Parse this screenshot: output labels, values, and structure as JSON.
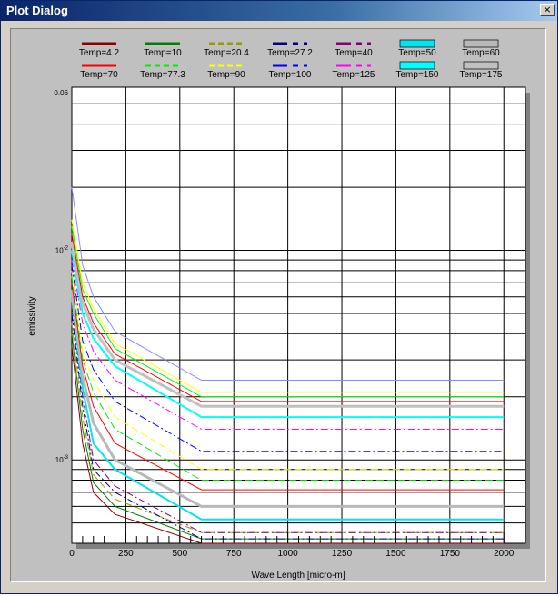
{
  "window": {
    "title": "Plot Dialog",
    "close_glyph": "×",
    "close_icon": "close-icon"
  },
  "chart_data": {
    "type": "line",
    "title": "",
    "xlabel": "Wave Length [micro-m]",
    "ylabel": "emissivity",
    "yscale": "log",
    "xlim": [
      0,
      2100
    ],
    "ylim": [
      0.0004,
      0.06
    ],
    "xticks": [
      0,
      250,
      500,
      750,
      1000,
      1250,
      1500,
      1750,
      2000
    ],
    "xtick_labels": [
      "0",
      "250",
      "500",
      "750",
      "1000",
      "1250",
      "1500",
      "1750",
      "2000"
    ],
    "ytick_labels": [
      {
        "value": 0.06,
        "base": "0.06",
        "exp": ""
      },
      {
        "value": 0.01,
        "base": "10",
        "exp": "-2"
      },
      {
        "value": 0.001,
        "base": "10",
        "exp": "-3"
      }
    ],
    "grid": true,
    "legend_position": "top",
    "x": [
      0,
      50,
      100,
      200,
      600,
      2000
    ],
    "series": [
      {
        "name": "Temp=4.2",
        "color": "#8b0000",
        "style": "solid",
        "width": 1,
        "values": [
          0.0035,
          0.0012,
          0.0007,
          0.00055,
          0.0004,
          0.0004
        ]
      },
      {
        "name": "Temp=10",
        "color": "#008000",
        "style": "solid",
        "width": 1,
        "values": [
          0.004,
          0.0014,
          0.00078,
          0.0006,
          0.00042,
          0.00042
        ]
      },
      {
        "name": "Temp=20.4",
        "color": "#9a9a00",
        "style": "dash",
        "width": 1,
        "values": [
          0.0045,
          0.0016,
          0.00085,
          0.00065,
          0.00045,
          0.00045
        ]
      },
      {
        "name": "Temp=27.2",
        "color": "#000080",
        "style": "dashdot",
        "width": 1,
        "values": [
          0.005,
          0.0018,
          0.0009,
          0.0007,
          0.00042,
          0.00042
        ]
      },
      {
        "name": "Temp=40",
        "color": "#800080",
        "style": "dashdot",
        "width": 1,
        "values": [
          0.0055,
          0.002,
          0.001,
          0.00075,
          0.00045,
          0.00045
        ]
      },
      {
        "name": "Temp=50",
        "color": "#00e5ee",
        "style": "solid",
        "width": 2,
        "values": [
          0.006,
          0.0022,
          0.0012,
          0.0009,
          0.00052,
          0.00052
        ]
      },
      {
        "name": "Temp=60",
        "color": "#b8b8b8",
        "style": "solid",
        "width": 3,
        "values": [
          0.0065,
          0.0025,
          0.0015,
          0.001,
          0.0006,
          0.0006
        ]
      },
      {
        "name": "Temp=70",
        "color": "#ff0000",
        "style": "solid",
        "width": 1,
        "values": [
          0.007,
          0.0028,
          0.0018,
          0.0012,
          0.00072,
          0.00072
        ]
      },
      {
        "name": "Temp=77.3",
        "color": "#00ee00",
        "style": "dash",
        "width": 1,
        "values": [
          0.0075,
          0.003,
          0.0021,
          0.0014,
          0.0008,
          0.0008
        ]
      },
      {
        "name": "Temp=90",
        "color": "#ffff00",
        "style": "dash",
        "width": 1,
        "values": [
          0.008,
          0.0033,
          0.0024,
          0.0016,
          0.0009,
          0.0009
        ]
      },
      {
        "name": "Temp=100",
        "color": "#0000ff",
        "style": "dashdot",
        "width": 1,
        "values": [
          0.0085,
          0.0037,
          0.0027,
          0.0019,
          0.0011,
          0.0011
        ]
      },
      {
        "name": "Temp=125",
        "color": "#ff00ff",
        "style": "dashdot",
        "width": 1,
        "values": [
          0.009,
          0.0045,
          0.0033,
          0.0024,
          0.0014,
          0.0014
        ]
      },
      {
        "name": "Temp=150",
        "color": "#00ffff",
        "style": "solid",
        "width": 2,
        "values": [
          0.01,
          0.005,
          0.0038,
          0.0028,
          0.0016,
          0.0016
        ]
      },
      {
        "name": "Temp=175",
        "color": "#c0c0c0",
        "style": "solid",
        "width": 3,
        "values": [
          0.011,
          0.0056,
          0.0042,
          0.003,
          0.0018,
          0.0018
        ]
      },
      {
        "name": "",
        "color": "#ff0000",
        "style": "solid",
        "width": 1,
        "values": [
          0.012,
          0.006,
          0.0045,
          0.0032,
          0.0019,
          0.0019
        ]
      },
      {
        "name": "",
        "color": "#00ff00",
        "style": "solid",
        "width": 1,
        "values": [
          0.013,
          0.0065,
          0.005,
          0.0034,
          0.002,
          0.002
        ]
      },
      {
        "name": "",
        "color": "#ffff00",
        "style": "solid",
        "width": 1,
        "values": [
          0.014,
          0.007,
          0.0053,
          0.0036,
          0.0021,
          0.0021
        ]
      },
      {
        "name": "",
        "color": "#8888ff",
        "style": "solid",
        "width": 1,
        "values": [
          0.02,
          0.0085,
          0.006,
          0.0041,
          0.0024,
          0.0024
        ]
      }
    ]
  }
}
